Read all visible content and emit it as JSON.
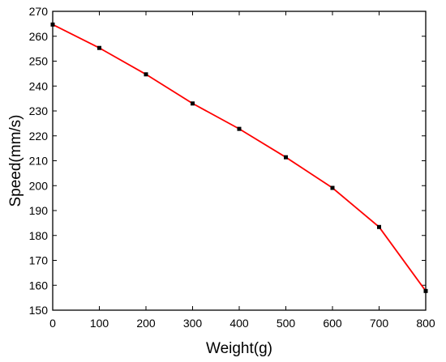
{
  "chart_data": {
    "type": "line",
    "title": "",
    "xlabel": "Weight(g)",
    "ylabel": "Speed(mm/s)",
    "xlim": [
      0,
      800
    ],
    "ylim": [
      150,
      270
    ],
    "xticks": [
      0,
      100,
      200,
      300,
      400,
      500,
      600,
      700,
      800
    ],
    "yticks": [
      150,
      160,
      170,
      180,
      190,
      200,
      210,
      220,
      230,
      240,
      250,
      260,
      270
    ],
    "grid": false,
    "legend": "none",
    "series": [
      {
        "color": "#ff0000",
        "marker_color": "#000000",
        "x": [
          0,
          100,
          200,
          300,
          400,
          500,
          600,
          700,
          800
        ],
        "y": [
          264.7,
          255.3,
          244.7,
          233.0,
          222.8,
          211.4,
          199.1,
          183.4,
          157.7
        ]
      }
    ]
  }
}
